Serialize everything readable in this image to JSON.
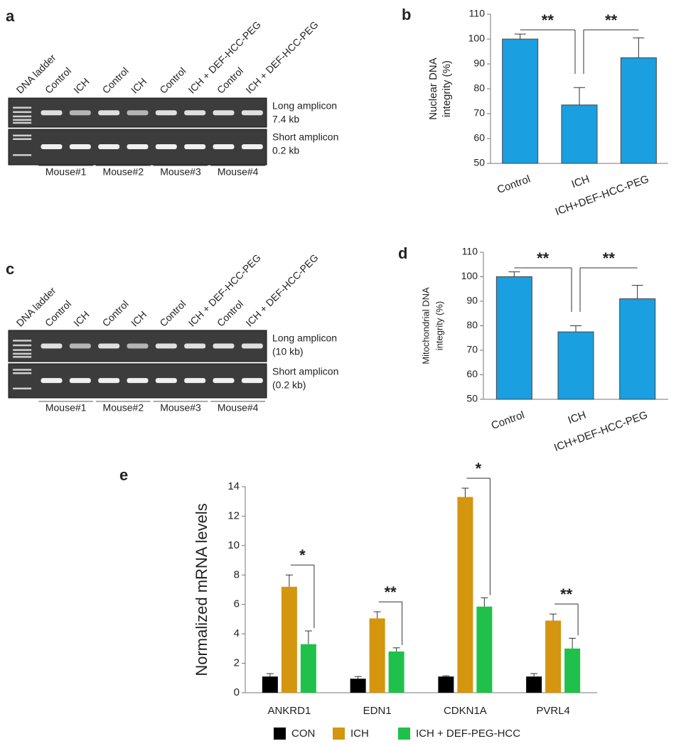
{
  "panels": [
    "a",
    "b",
    "c",
    "d",
    "e"
  ],
  "gels": [
    {
      "lanes": [
        "DNA ladder",
        "Control",
        "ICH",
        "Control",
        "ICH",
        "Control",
        "ICH + DEF-HCC-PEG",
        "Control",
        "ICH + DEF-HCC-PEG"
      ],
      "long_amplicon": [
        "Long amplicon",
        "7.4 kb"
      ],
      "short_amplicon": [
        "Short amplicon",
        "0.2 kb"
      ],
      "mice": [
        "Mouse#1",
        "Mouse#2",
        "Mouse#3",
        "Mouse#4"
      ]
    },
    {
      "lanes": [
        "DNA ladder",
        "Control",
        "ICH",
        "Control",
        "ICH",
        "Control",
        "ICH + DEF-HCC-PEG",
        "Control",
        "ICH + DEF-HCC-PEG"
      ],
      "long_amplicon": [
        "Long amplicon",
        "(10 kb)"
      ],
      "short_amplicon": [
        "Short amplicon",
        "(0.2 kb)"
      ],
      "mice": [
        "Mouse#1",
        "Mouse#2",
        "Mouse#3",
        "Mouse#4"
      ]
    }
  ],
  "chart_data": [
    {
      "type": "bar",
      "ylabel": [
        "Nuclear DNA",
        "integrity (%)"
      ],
      "categories": [
        "Control",
        "ICH",
        "ICH+DEF-HCC-PEG"
      ],
      "values": [
        100,
        73.5,
        92.5
      ],
      "errors": [
        2,
        7,
        8
      ],
      "color": "#1a9fe0",
      "ylim": [
        50,
        110
      ],
      "yticks": [
        50,
        60,
        70,
        80,
        90,
        100,
        110
      ],
      "annotations": [
        "**",
        "**"
      ]
    },
    {
      "type": "bar",
      "ylabel": [
        "Mitochondrial DNA",
        "integrity (%)"
      ],
      "categories": [
        "Control",
        "ICH",
        "ICH+DEF-HCC-PEG"
      ],
      "values": [
        100,
        77.5,
        91
      ],
      "errors": [
        2,
        2.5,
        5.5
      ],
      "color": "#1a9fe0",
      "ylim": [
        50,
        110
      ],
      "yticks": [
        50,
        60,
        70,
        80,
        90,
        100,
        110
      ],
      "annotations": [
        "**",
        "**"
      ]
    },
    {
      "type": "bar",
      "ylabel": [
        "Normalized mRNA levels"
      ],
      "categories": [
        "ANKRD1",
        "EDN1",
        "CDKN1A",
        "PVRL4"
      ],
      "series": [
        {
          "name": "CON",
          "color": "#000000",
          "values": [
            1.1,
            0.95,
            1.1,
            1.1
          ],
          "errors": [
            0.2,
            0.15,
            0.05,
            0.2
          ]
        },
        {
          "name": "ICH",
          "color": "#d4950f",
          "values": [
            7.2,
            5.05,
            13.3,
            4.9
          ],
          "errors": [
            0.8,
            0.45,
            0.6,
            0.45
          ]
        },
        {
          "name": "ICH + DEF-PEG-HCC",
          "color": "#1fc14a",
          "values": [
            3.3,
            2.8,
            5.85,
            3.0
          ],
          "errors": [
            0.9,
            0.25,
            0.6,
            0.7
          ]
        }
      ],
      "ylim": [
        0,
        14
      ],
      "yticks": [
        0,
        2,
        4,
        6,
        8,
        10,
        12,
        14
      ],
      "annotations": [
        "*",
        "**",
        "*",
        "**"
      ]
    }
  ]
}
